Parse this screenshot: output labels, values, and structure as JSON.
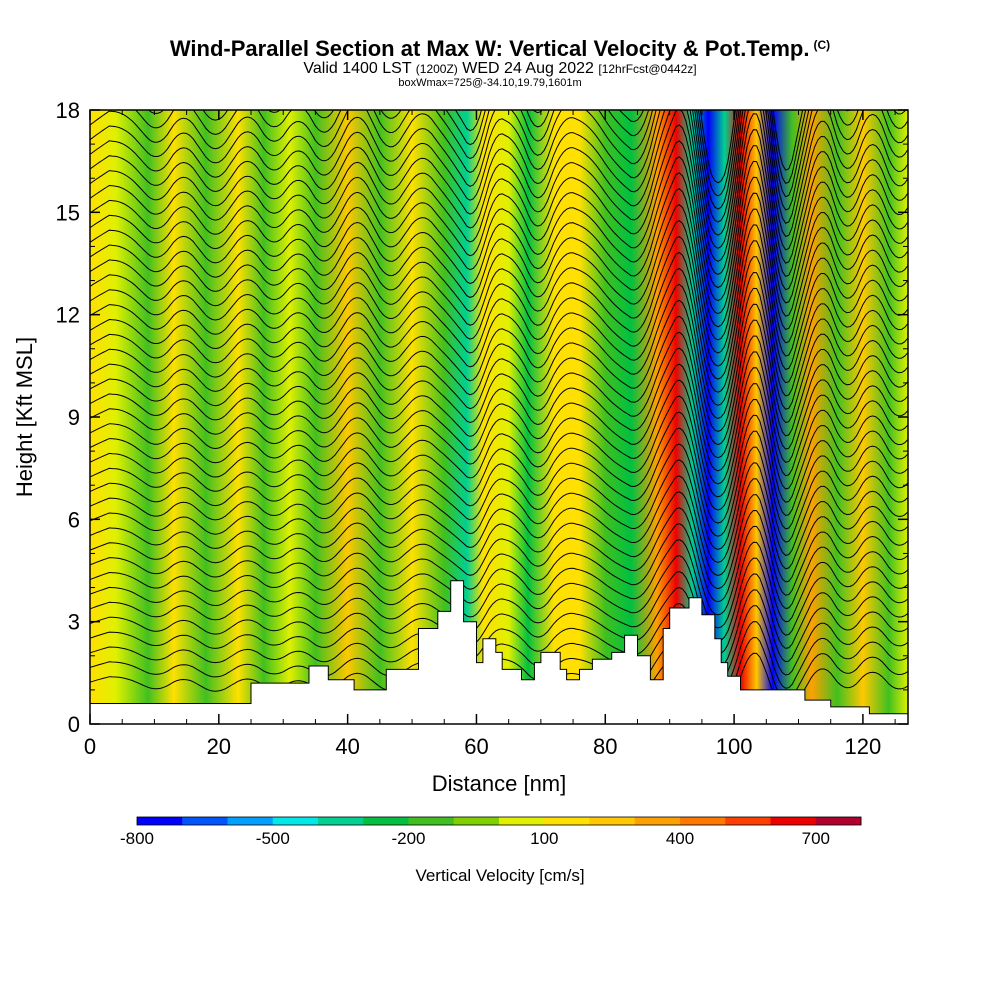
{
  "title": {
    "main": "Wind-Parallel Section at Max W: Vertical Velocity & Pot.Temp.",
    "copyright": "(C)",
    "valid_prefix": "Valid 1400 LST",
    "valid_utc": "(1200Z)",
    "valid_date": "WED 24 Aug 2022",
    "forecast": "[12hrFcst@0442z]",
    "box_info": "boxWmax=725@-34.10,19.79,1601m"
  },
  "chart_data": {
    "type": "heatmap",
    "xlabel": "Distance [nm]",
    "ylabel": "Height [Kft MSL]",
    "xlim": [
      0,
      127
    ],
    "ylim": [
      0,
      18
    ],
    "x_ticks": [
      0,
      20,
      40,
      60,
      80,
      100,
      120
    ],
    "y_ticks": [
      0,
      3,
      6,
      9,
      12,
      15,
      18
    ],
    "colorbar": {
      "label": "Vertical Velocity [cm/s]",
      "tick_values": [
        -800,
        -500,
        -200,
        100,
        400,
        700
      ],
      "tick_labels": [
        "-800",
        "-500",
        "-200",
        "100",
        "400",
        "700"
      ],
      "colors": [
        "#0000ff",
        "#0055ff",
        "#00a0ff",
        "#00e8e8",
        "#00d090",
        "#00c040",
        "#40c020",
        "#80d000",
        "#e0f000",
        "#ffe000",
        "#ffc800",
        "#ffa000",
        "#ff7800",
        "#ff4000",
        "#ee0000",
        "#b00030"
      ]
    },
    "velocity_bands": [
      {
        "x": 0,
        "w": 120
      },
      {
        "x": 4,
        "w": 100
      },
      {
        "x": 9,
        "w": -150
      },
      {
        "x": 13,
        "w": 120
      },
      {
        "x": 18,
        "w": -200
      },
      {
        "x": 23,
        "w": 130
      },
      {
        "x": 27,
        "w": -150
      },
      {
        "x": 31,
        "w": 100
      },
      {
        "x": 35,
        "w": -200
      },
      {
        "x": 40,
        "w": 250
      },
      {
        "x": 45,
        "w": -200
      },
      {
        "x": 50,
        "w": 150
      },
      {
        "x": 55,
        "w": -150
      },
      {
        "x": 58.5,
        "w": -400
      },
      {
        "x": 61,
        "w": 200
      },
      {
        "x": 65,
        "w": 100
      },
      {
        "x": 68,
        "w": -300
      },
      {
        "x": 72,
        "w": 200
      },
      {
        "x": 76,
        "w": 120
      },
      {
        "x": 80,
        "w": -150
      },
      {
        "x": 84,
        "w": -300
      },
      {
        "x": 88,
        "w": 400
      },
      {
        "x": 91,
        "w": 700
      },
      {
        "x": 93.5,
        "w": -350
      },
      {
        "x": 96,
        "w": -800
      },
      {
        "x": 98.5,
        "w": -350
      },
      {
        "x": 101,
        "w": 750
      },
      {
        "x": 103.5,
        "w": 300
      },
      {
        "x": 106,
        "w": -800
      },
      {
        "x": 109,
        "w": -200
      },
      {
        "x": 112,
        "w": 400
      },
      {
        "x": 116,
        "w": -200
      },
      {
        "x": 120,
        "w": 300
      },
      {
        "x": 124,
        "w": -200
      },
      {
        "x": 127,
        "w": 100
      }
    ],
    "terrain": [
      {
        "x": 0,
        "h": 0.6
      },
      {
        "x": 25,
        "h": 0.6
      },
      {
        "x": 25,
        "h": 1.2
      },
      {
        "x": 34,
        "h": 1.2
      },
      {
        "x": 34,
        "h": 1.7
      },
      {
        "x": 37,
        "h": 1.7
      },
      {
        "x": 37,
        "h": 1.3
      },
      {
        "x": 41,
        "h": 1.3
      },
      {
        "x": 41,
        "h": 1.0
      },
      {
        "x": 46,
        "h": 1.0
      },
      {
        "x": 46,
        "h": 1.6
      },
      {
        "x": 51,
        "h": 1.6
      },
      {
        "x": 51,
        "h": 2.8
      },
      {
        "x": 54,
        "h": 2.8
      },
      {
        "x": 54,
        "h": 3.3
      },
      {
        "x": 56,
        "h": 3.3
      },
      {
        "x": 56,
        "h": 4.2
      },
      {
        "x": 58,
        "h": 4.2
      },
      {
        "x": 58,
        "h": 3.0
      },
      {
        "x": 60,
        "h": 3.0
      },
      {
        "x": 60,
        "h": 1.8
      },
      {
        "x": 61,
        "h": 1.8
      },
      {
        "x": 61,
        "h": 2.5
      },
      {
        "x": 63,
        "h": 2.5
      },
      {
        "x": 63,
        "h": 2.1
      },
      {
        "x": 64,
        "h": 2.1
      },
      {
        "x": 64,
        "h": 1.6
      },
      {
        "x": 67,
        "h": 1.6
      },
      {
        "x": 67,
        "h": 1.3
      },
      {
        "x": 69,
        "h": 1.3
      },
      {
        "x": 69,
        "h": 1.8
      },
      {
        "x": 70,
        "h": 1.8
      },
      {
        "x": 70,
        "h": 2.1
      },
      {
        "x": 73,
        "h": 2.1
      },
      {
        "x": 73,
        "h": 1.6
      },
      {
        "x": 74,
        "h": 1.6
      },
      {
        "x": 74,
        "h": 1.3
      },
      {
        "x": 76,
        "h": 1.3
      },
      {
        "x": 76,
        "h": 1.6
      },
      {
        "x": 78,
        "h": 1.6
      },
      {
        "x": 78,
        "h": 1.9
      },
      {
        "x": 81,
        "h": 1.9
      },
      {
        "x": 81,
        "h": 2.1
      },
      {
        "x": 83,
        "h": 2.1
      },
      {
        "x": 83,
        "h": 2.6
      },
      {
        "x": 85,
        "h": 2.6
      },
      {
        "x": 85,
        "h": 2.0
      },
      {
        "x": 87,
        "h": 2.0
      },
      {
        "x": 87,
        "h": 1.3
      },
      {
        "x": 89,
        "h": 1.3
      },
      {
        "x": 89,
        "h": 2.8
      },
      {
        "x": 90,
        "h": 2.8
      },
      {
        "x": 90,
        "h": 3.4
      },
      {
        "x": 93,
        "h": 3.4
      },
      {
        "x": 93,
        "h": 3.7
      },
      {
        "x": 95,
        "h": 3.7
      },
      {
        "x": 95,
        "h": 3.2
      },
      {
        "x": 97,
        "h": 3.2
      },
      {
        "x": 97,
        "h": 2.5
      },
      {
        "x": 98,
        "h": 2.5
      },
      {
        "x": 98,
        "h": 1.8
      },
      {
        "x": 99,
        "h": 1.8
      },
      {
        "x": 99,
        "h": 1.4
      },
      {
        "x": 101,
        "h": 1.4
      },
      {
        "x": 101,
        "h": 1.0
      },
      {
        "x": 111,
        "h": 1.0
      },
      {
        "x": 111,
        "h": 0.7
      },
      {
        "x": 115,
        "h": 0.7
      },
      {
        "x": 115,
        "h": 0.5
      },
      {
        "x": 121,
        "h": 0.5
      },
      {
        "x": 121,
        "h": 0.3
      },
      {
        "x": 127,
        "h": 0.3
      }
    ],
    "isentrope_count": 42
  }
}
